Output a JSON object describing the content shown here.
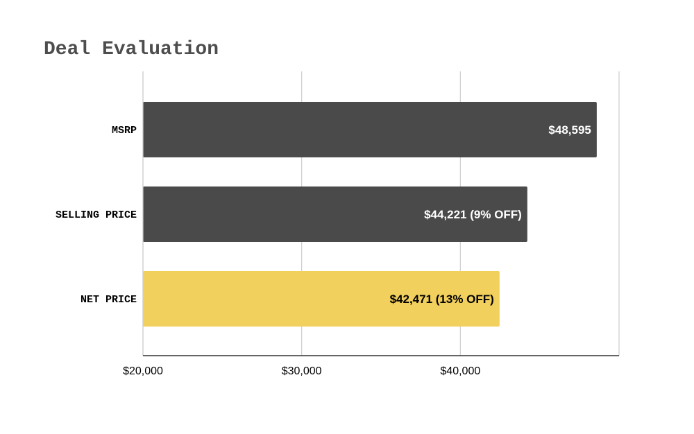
{
  "colors": {
    "dark_bar": "#4a4a4a",
    "highlight_bar": "#f2d05e",
    "gridline": "#cccccc",
    "axis": "#333333",
    "title": "#4d4d4d",
    "label_on_dark": "#ffffff",
    "label_on_light": "#000000"
  },
  "chart_data": {
    "type": "bar",
    "orientation": "horizontal",
    "title": "Deal Evaluation",
    "xlabel": "",
    "ylabel": "",
    "categories": [
      "MSRP",
      "SELLING PRICE",
      "NET PRICE"
    ],
    "values": [
      48595,
      44221,
      42471
    ],
    "data_labels": [
      "$48,595",
      "$44,221 (9% OFF)",
      "$42,471 (13% OFF)"
    ],
    "bar_colors": [
      "#4a4a4a",
      "#4a4a4a",
      "#f2d05e"
    ],
    "label_colors": [
      "#ffffff",
      "#ffffff",
      "#000000"
    ],
    "xlim": [
      20000,
      50000
    ],
    "x_ticks": [
      20000,
      30000,
      40000
    ],
    "x_tick_labels": [
      "$20,000",
      "$30,000",
      "$40,000"
    ],
    "grid": true,
    "legend": "none"
  }
}
